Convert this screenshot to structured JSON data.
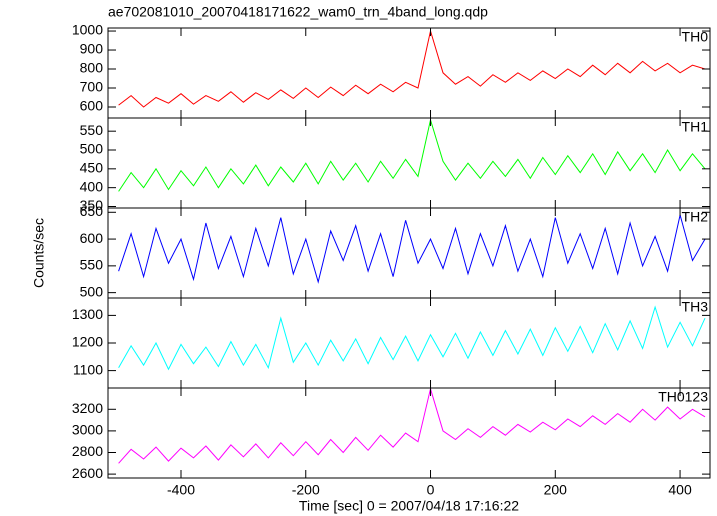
{
  "chart_data": {
    "type": "line",
    "title": "ae702081010_20070418171622_wam0_trn_4band_long.qdp",
    "xlabel": "Time [sec] 0 = 2007/04/18 17:16:22",
    "ylabel": "Counts/sec",
    "xlim": [
      -517,
      448
    ],
    "xticks": [
      -400,
      -200,
      0,
      200,
      400
    ],
    "x": [
      -500,
      -480,
      -460,
      -440,
      -420,
      -400,
      -380,
      -360,
      -340,
      -320,
      -300,
      -280,
      -260,
      -240,
      -220,
      -200,
      -180,
      -160,
      -140,
      -120,
      -100,
      -80,
      -60,
      -40,
      -20,
      0,
      20,
      40,
      60,
      80,
      100,
      120,
      140,
      160,
      180,
      200,
      220,
      240,
      260,
      280,
      300,
      320,
      340,
      360,
      380,
      400,
      420,
      440
    ],
    "series": [
      {
        "name": "TH0",
        "color": "#ff0000",
        "ylim": [
          542,
          1016
        ],
        "yticks": [
          600,
          700,
          800,
          900,
          1000
        ],
        "values": [
          610,
          660,
          600,
          650,
          620,
          670,
          615,
          660,
          630,
          680,
          625,
          675,
          640,
          690,
          645,
          700,
          650,
          705,
          660,
          715,
          670,
          720,
          680,
          730,
          700,
          1000,
          780,
          720,
          760,
          710,
          770,
          730,
          780,
          740,
          790,
          750,
          800,
          760,
          820,
          770,
          830,
          780,
          840,
          790,
          830,
          780,
          820,
          800
        ]
      },
      {
        "name": "TH1",
        "color": "#00ff00",
        "ylim": [
          346,
          585
        ],
        "yticks": [
          350,
          400,
          450,
          500,
          550
        ],
        "values": [
          390,
          440,
          400,
          450,
          395,
          445,
          405,
          455,
          400,
          450,
          410,
          460,
          405,
          455,
          415,
          465,
          410,
          470,
          420,
          465,
          415,
          470,
          425,
          475,
          430,
          580,
          470,
          420,
          465,
          425,
          470,
          430,
          475,
          425,
          480,
          435,
          485,
          440,
          490,
          435,
          495,
          445,
          490,
          440,
          500,
          445,
          490,
          450
        ]
      },
      {
        "name": "TH2",
        "color": "#0000ff",
        "ylim": [
          490,
          658
        ],
        "yticks": [
          500,
          550,
          600,
          650
        ],
        "values": [
          540,
          610,
          530,
          620,
          555,
          600,
          525,
          630,
          545,
          605,
          530,
          620,
          550,
          640,
          535,
          600,
          520,
          615,
          560,
          625,
          540,
          610,
          530,
          635,
          555,
          600,
          545,
          620,
          535,
          610,
          550,
          625,
          540,
          600,
          530,
          640,
          555,
          610,
          545,
          620,
          535,
          630,
          550,
          605,
          540,
          645,
          560,
          600
        ]
      },
      {
        "name": "TH3",
        "color": "#00ffff",
        "ylim": [
          1037,
          1363
        ],
        "yticks": [
          1100,
          1200,
          1300
        ],
        "values": [
          1110,
          1190,
          1120,
          1200,
          1105,
          1195,
          1125,
          1185,
          1115,
          1205,
          1120,
          1195,
          1110,
          1290,
          1130,
          1200,
          1120,
          1210,
          1135,
          1215,
          1125,
          1220,
          1140,
          1225,
          1135,
          1230,
          1150,
          1235,
          1145,
          1240,
          1155,
          1245,
          1160,
          1250,
          1155,
          1255,
          1170,
          1260,
          1165,
          1270,
          1175,
          1280,
          1180,
          1330,
          1185,
          1275,
          1190,
          1290
        ]
      },
      {
        "name": "TH0123",
        "color": "#ff00ff",
        "ylim": [
          2564,
          3397
        ],
        "yticks": [
          2600,
          2800,
          3000,
          3200
        ],
        "values": [
          2700,
          2830,
          2740,
          2850,
          2720,
          2840,
          2750,
          2860,
          2730,
          2870,
          2760,
          2880,
          2750,
          2890,
          2770,
          2900,
          2780,
          2920,
          2800,
          2940,
          2820,
          2960,
          2850,
          2980,
          2900,
          3390,
          3000,
          2920,
          3020,
          2940,
          3040,
          2960,
          3060,
          2990,
          3080,
          3010,
          3110,
          3040,
          3140,
          3060,
          3160,
          3080,
          3200,
          3100,
          3220,
          3110,
          3200,
          3130
        ]
      }
    ]
  }
}
